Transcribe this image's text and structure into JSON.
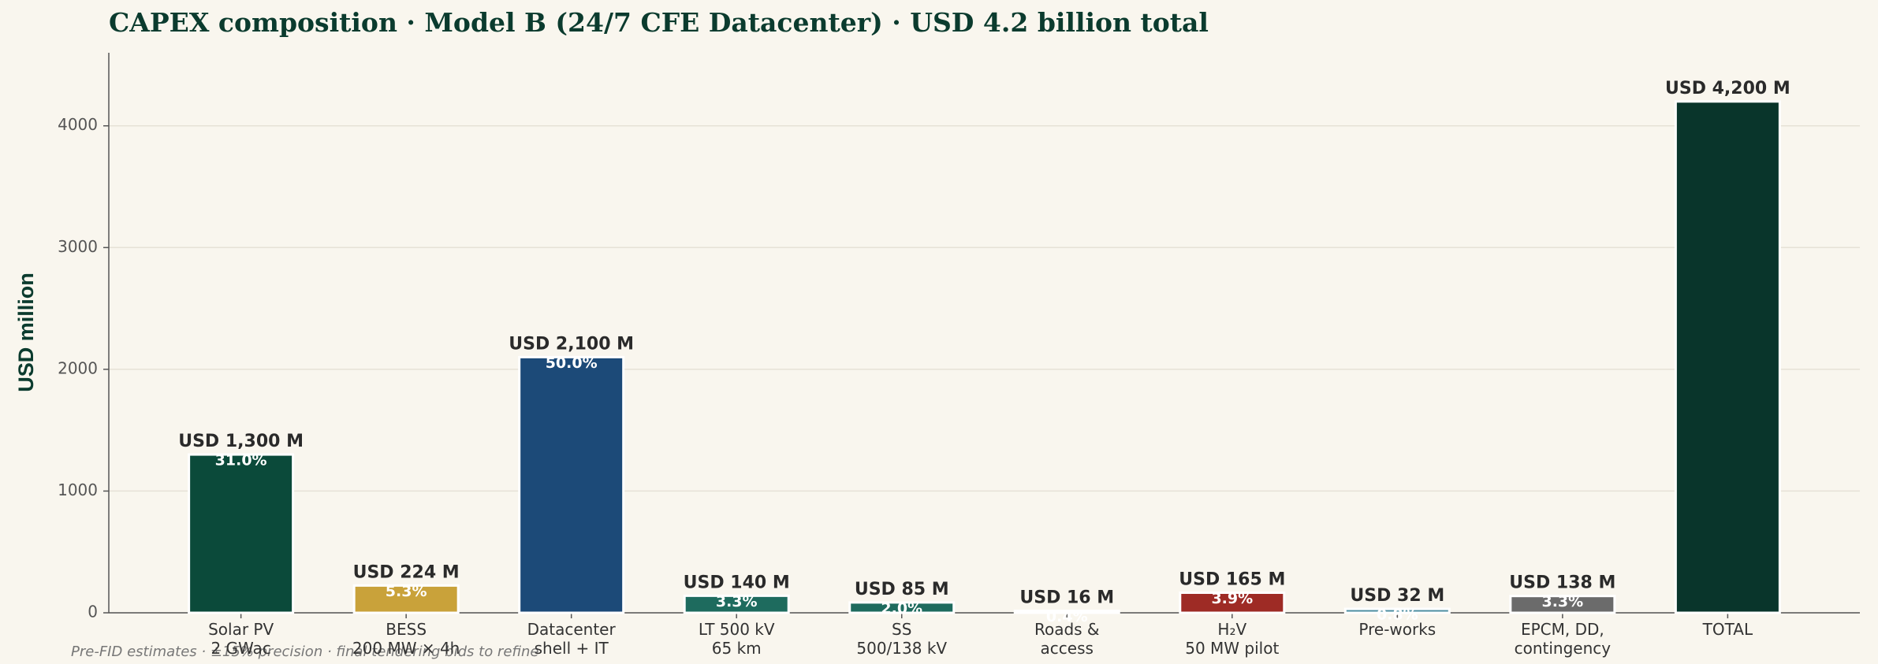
{
  "chart_data": {
    "type": "bar",
    "title": "CAPEX composition · Model B (24/7 CFE Datacenter) · USD 4.2 billion total",
    "ylabel": "USD million",
    "categories": [
      "Solar PV\n2 GWac",
      "BESS\n200 MW × 4h",
      "Datacenter\nshell + IT",
      "LT 500 kV\n65 km",
      "SS\n500/138 kV",
      "Roads &\naccess",
      "H₂V\n50 MW pilot",
      "Pre-works",
      "EPCM, DD,\ncontingency",
      "TOTAL"
    ],
    "values": [
      1300,
      224,
      2100,
      140,
      85,
      16,
      165,
      32,
      138,
      4200
    ],
    "value_labels": [
      "USD 1,300 M",
      "USD 224 M",
      "USD 2,100 M",
      "USD 140 M",
      "USD 85 M",
      "USD 16 M",
      "USD 165 M",
      "USD 32 M",
      "USD 138 M",
      "USD 4,200 M"
    ],
    "shares": [
      31.0,
      5.3,
      50.0,
      3.3,
      2.0,
      0.4,
      3.9,
      0.8,
      3.3,
      null
    ],
    "share_labels": [
      "31.0%",
      "5.3%",
      "50.0%",
      "3.3%",
      "2.0%",
      "0.4%",
      "3.9%",
      "0.8%",
      "3.3%",
      null
    ],
    "colors": [
      "#0b4a3a",
      "#c9a23a",
      "#1c4a78",
      "#1e6b5e",
      "#1e6b5e",
      "#1e6b5e",
      "#9e2b25",
      "#4a8ca0",
      "#6b6b6b",
      "#09352b"
    ],
    "ylim": [
      0,
      4600
    ],
    "yticks": [
      0,
      1000,
      2000,
      3000,
      4000
    ],
    "grid": true,
    "footnote": "Pre-FID estimates · ±15% precision · final tendering bids to refine"
  }
}
